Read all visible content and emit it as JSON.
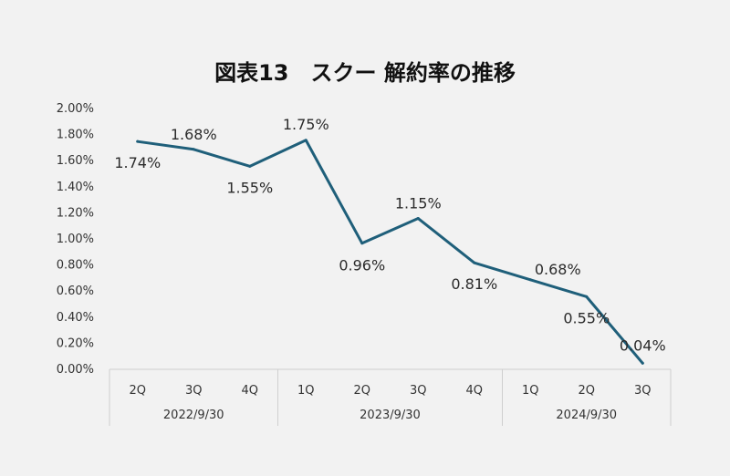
{
  "chart_data": {
    "type": "line",
    "title": "図表13　スクー 解約率の推移",
    "categories": [
      "2Q",
      "3Q",
      "4Q",
      "1Q",
      "2Q",
      "3Q",
      "4Q",
      "1Q",
      "2Q",
      "3Q"
    ],
    "groups": [
      {
        "label": "2022/9/30",
        "start": 0,
        "count": 3
      },
      {
        "label": "2023/9/30",
        "start": 3,
        "count": 4
      },
      {
        "label": "2024/9/30",
        "start": 7,
        "count": 3
      }
    ],
    "series": [
      {
        "name": "解約率",
        "values": [
          1.74,
          1.68,
          1.55,
          1.75,
          0.96,
          1.15,
          0.81,
          0.68,
          0.55,
          0.04
        ],
        "labels": [
          "1.74%",
          "1.68%",
          "1.55%",
          "1.75%",
          "0.96%",
          "1.15%",
          "0.81%",
          "0.68%",
          "0.55%",
          "0.04%"
        ],
        "color": "#1f5f7a"
      }
    ],
    "ylim": [
      0,
      2
    ],
    "yticks": [
      "0.00%",
      "0.20%",
      "0.40%",
      "0.60%",
      "0.80%",
      "1.00%",
      "1.20%",
      "1.40%",
      "1.60%",
      "1.80%",
      "2.00%"
    ],
    "xlabel": "",
    "ylabel": ""
  }
}
